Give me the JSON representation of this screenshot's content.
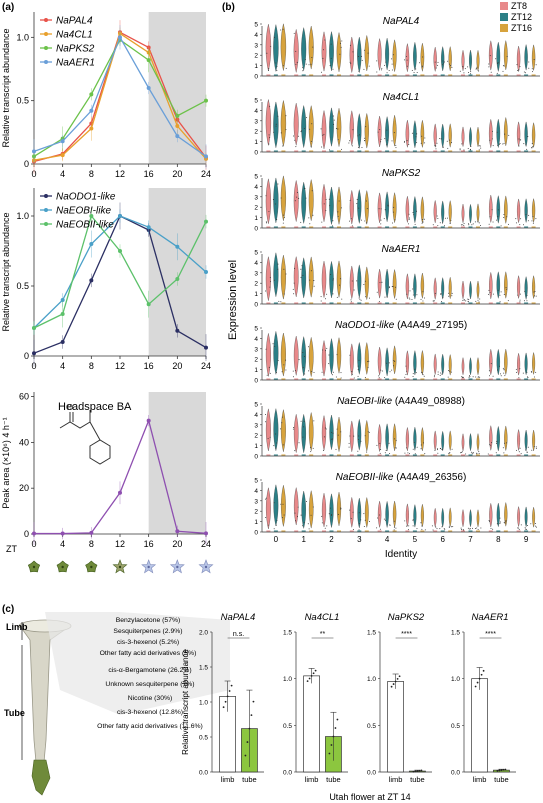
{
  "panel_labels": {
    "a": "(a)",
    "b": "(b)",
    "c": "(c)"
  },
  "colors": {
    "pal4": "#e8534a",
    "cl1": "#e8a02c",
    "pks2": "#6cc24a",
    "aer1": "#6a9fd8",
    "odo1": "#2b2f63",
    "eobi": "#4aa0c8",
    "eobii": "#5cc16a",
    "ba": "#8e4fb0",
    "zt8": "#e8898a",
    "zt12": "#2b7f86",
    "zt16": "#d7a33d",
    "bar_limb": "#ffffff",
    "bar_tube": "#8cc63f"
  },
  "panel_a": {
    "zt_label": "ZT",
    "charts": [
      {
        "type": "line",
        "ylabel": "Relative transcript abundance",
        "xlim": [
          0,
          24
        ],
        "ylim": [
          0,
          1.2
        ],
        "yticks": [
          0,
          0.5,
          1.0
        ],
        "ytick_labels": [
          "0",
          "0.5",
          "1.0"
        ],
        "xticks": [
          0,
          4,
          8,
          12,
          16,
          20,
          24
        ],
        "x": [
          0,
          4,
          8,
          12,
          16,
          20,
          24
        ],
        "shade": [
          16,
          24
        ],
        "series": [
          {
            "name": "NaPAL4",
            "color_key": "pal4",
            "values": [
              0.02,
              0.08,
              0.32,
              1.04,
              0.92,
              0.35,
              0.05
            ]
          },
          {
            "name": "Na4CL1",
            "color_key": "cl1",
            "values": [
              0.03,
              0.07,
              0.28,
              1.03,
              0.88,
              0.3,
              0.04
            ]
          },
          {
            "name": "NaPKS2",
            "color_key": "pks2",
            "values": [
              0.06,
              0.2,
              0.55,
              0.98,
              0.82,
              0.38,
              0.5
            ]
          },
          {
            "name": "NaAER1",
            "color_key": "aer1",
            "values": [
              0.1,
              0.18,
              0.42,
              1.0,
              0.6,
              0.22,
              0.06
            ]
          }
        ]
      },
      {
        "type": "line",
        "ylabel": "Relative transcript abundance",
        "xlim": [
          0,
          24
        ],
        "ylim": [
          0,
          1.2
        ],
        "yticks": [
          0,
          0.5,
          1.0
        ],
        "ytick_labels": [
          "0",
          "0.5",
          "1.0"
        ],
        "xticks": [
          0,
          4,
          8,
          12,
          16,
          20,
          24
        ],
        "x": [
          0,
          4,
          8,
          12,
          16,
          20,
          24
        ],
        "shade": [
          16,
          24
        ],
        "series": [
          {
            "name": "NaODO1-like",
            "color_key": "odo1",
            "values": [
              0.02,
              0.1,
              0.54,
              1.0,
              0.9,
              0.18,
              0.06
            ]
          },
          {
            "name": "NaEOBI-like",
            "color_key": "eobi",
            "values": [
              0.2,
              0.4,
              0.8,
              1.0,
              0.92,
              0.78,
              0.6
            ]
          },
          {
            "name": "NaEOBII-like",
            "color_key": "eobii",
            "values": [
              0.2,
              0.3,
              1.0,
              0.75,
              0.37,
              0.55,
              0.96
            ]
          }
        ]
      },
      {
        "type": "line",
        "ylabel": "Peak area (×10⁶) 4 h⁻¹",
        "annotation": "Headspace BA",
        "xlim": [
          0,
          24
        ],
        "ylim": [
          0,
          62
        ],
        "yticks": [
          0,
          20,
          40,
          60
        ],
        "ytick_labels": [
          "0",
          "20",
          "40",
          "60"
        ],
        "xticks": [
          0,
          4,
          8,
          12,
          16,
          20,
          24
        ],
        "x": [
          0,
          4,
          8,
          12,
          16,
          20,
          24
        ],
        "shade": [
          16,
          24
        ],
        "series": [
          {
            "name": "",
            "color_key": "ba",
            "values": [
              0.2,
              0.2,
              0.5,
              18,
              49.5,
              1.2,
              0.3
            ]
          }
        ]
      }
    ]
  },
  "panel_b": {
    "ylabel": "Expression level",
    "xlabel": "Identity",
    "legend": [
      "ZT8",
      "ZT12",
      "ZT16"
    ],
    "identities": [
      "0",
      "1",
      "2",
      "3",
      "4",
      "5",
      "6",
      "7",
      "8",
      "9"
    ],
    "yticks": [
      0,
      1,
      2,
      3,
      4,
      5
    ],
    "genes": [
      {
        "name": "NaPAL4",
        "suffix": ""
      },
      {
        "name": "Na4CL1",
        "suffix": ""
      },
      {
        "name": "NaPKS2",
        "suffix": ""
      },
      {
        "name": "NaAER1",
        "suffix": ""
      },
      {
        "name": "NaODO1-like",
        "suffix": " (A4A49_27195)"
      },
      {
        "name": "NaEOBI-like",
        "suffix": " (A4A49_08988)"
      },
      {
        "name": "NaEOBII-like",
        "suffix": " (A4A49_26356)"
      }
    ]
  },
  "panel_c": {
    "flower_labels": {
      "limb": "Limb",
      "tube": "Tube"
    },
    "limb_compounds": [
      "Benzylacetone (57%)",
      "Sesquiterpenes (2.9%)",
      "cis-3-hexenol (5.2%)",
      "Other fatty acid derivatives (5%)"
    ],
    "tube_compounds": [
      "cis-α-Bergamotene (26.2%)",
      "Unknown sesquiterpene (7%)",
      "Nicotine (30%)",
      "cis-3-hexenol (12.8%)",
      "Other fatty acid derivatives (11.6%)"
    ],
    "ylabel": "Relative transcript abundance",
    "xlabel": "Utah flower at ZT 14",
    "categories": [
      "limb",
      "tube"
    ],
    "charts": [
      {
        "type": "bar",
        "title": "NaPAL4",
        "sig": "n.s.",
        "ylim": [
          0,
          2.0
        ],
        "yticks": [
          0,
          0.5,
          1.0,
          1.5,
          2.0
        ],
        "values": [
          1.08,
          0.62
        ],
        "errors": [
          0.22,
          0.55
        ]
      },
      {
        "type": "bar",
        "title": "Na4CL1",
        "sig": "**",
        "ylim": [
          0,
          1.5
        ],
        "yticks": [
          0,
          0.5,
          1.0,
          1.5
        ],
        "values": [
          1.03,
          0.38
        ],
        "errors": [
          0.08,
          0.26
        ]
      },
      {
        "type": "bar",
        "title": "NaPKS2",
        "sig": "****",
        "ylim": [
          0,
          1.5
        ],
        "yticks": [
          0,
          0.5,
          1.0,
          1.5
        ],
        "values": [
          0.97,
          0.01
        ],
        "errors": [
          0.08,
          0.01
        ]
      },
      {
        "type": "bar",
        "title": "NaAER1",
        "sig": "****",
        "ylim": [
          0,
          1.5
        ],
        "yticks": [
          0,
          0.5,
          1.0,
          1.5
        ],
        "values": [
          1.0,
          0.02
        ],
        "errors": [
          0.12,
          0.01
        ]
      }
    ]
  }
}
